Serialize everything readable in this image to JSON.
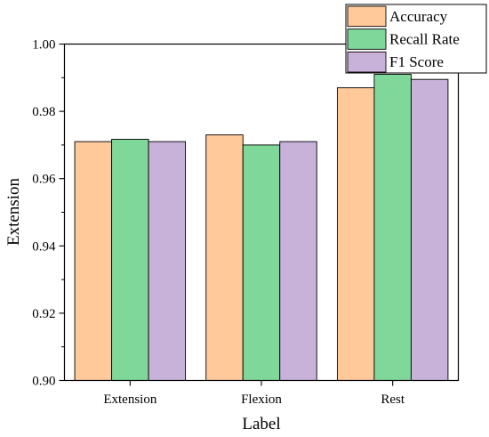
{
  "chart_data": {
    "type": "bar",
    "xlabel": "Label",
    "ylabel": "Extension",
    "categories": [
      "Extension",
      "Flexion",
      "Rest"
    ],
    "ylim": [
      0.9,
      1.0
    ],
    "yticks": [
      "0.90",
      "0.92",
      "0.94",
      "0.96",
      "0.98",
      "1.00"
    ],
    "series": [
      {
        "name": "Accuracy",
        "values": [
          0.971,
          0.973,
          0.987
        ],
        "color": "#FFC999"
      },
      {
        "name": "Recall Rate",
        "values": [
          0.9717,
          0.97,
          0.991
        ],
        "color": "#7FD89A"
      },
      {
        "name": "F1 Score",
        "values": [
          0.971,
          0.971,
          0.9895
        ],
        "color": "#C9B2D9"
      }
    ],
    "legend_position": "top-right",
    "grid": false
  }
}
